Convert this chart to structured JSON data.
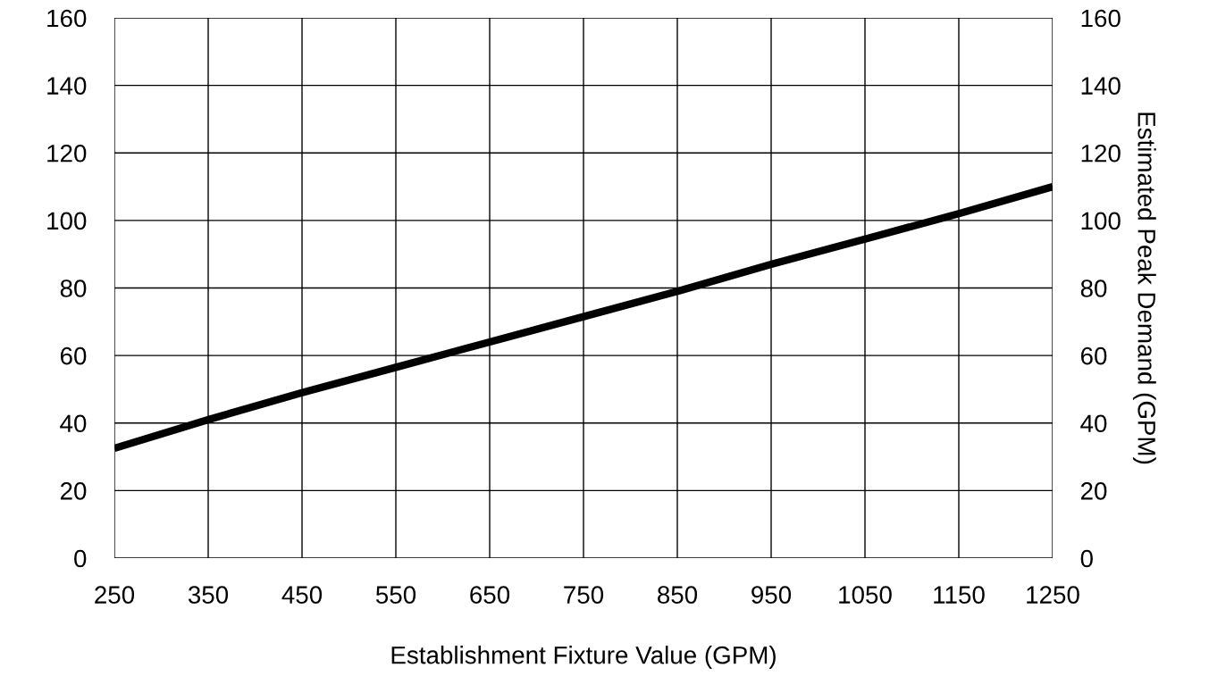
{
  "chart_data": {
    "type": "line",
    "xlabel": "Establishment Fixture Value (GPM)",
    "y2label": "Estimated Peak Demand (GPM)",
    "x": [
      250,
      350,
      450,
      550,
      650,
      750,
      850,
      950,
      1050,
      1150,
      1250
    ],
    "series": [
      {
        "color": "#000000",
        "values": [
          32.5,
          41,
          49,
          56.5,
          64,
          71.5,
          79,
          87,
          94.5,
          102,
          110
        ]
      }
    ],
    "xlim": [
      250,
      1250
    ],
    "xticks": [
      250,
      350,
      450,
      550,
      650,
      750,
      850,
      950,
      1050,
      1150,
      1250
    ],
    "ylim": [
      0,
      160
    ],
    "yticks": [
      0,
      20,
      40,
      60,
      80,
      100,
      120,
      140,
      160
    ],
    "y2lim": [
      0,
      160
    ],
    "y2ticks": [
      0,
      20,
      40,
      60,
      80,
      100,
      120,
      140,
      160
    ],
    "grid": true,
    "marker": "none",
    "line_style": "solid",
    "legend": false
  }
}
